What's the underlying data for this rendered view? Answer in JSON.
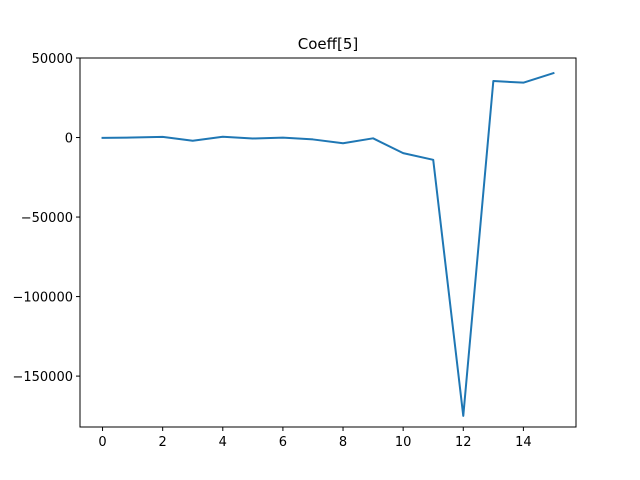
{
  "chart_data": {
    "type": "line",
    "title": "Coeff[5]",
    "xlabel": "",
    "ylabel": "",
    "xlim": [
      -0.75,
      15.75
    ],
    "ylim": [
      -182000,
      50000
    ],
    "xticks": [
      0,
      2,
      4,
      6,
      8,
      10,
      12,
      14
    ],
    "yticks": [
      50000,
      0,
      -50000,
      -100000,
      -150000
    ],
    "xtick_labels": [
      "0",
      "2",
      "4",
      "6",
      "8",
      "10",
      "12",
      "14"
    ],
    "ytick_labels": [
      "50000",
      "0",
      "−50000",
      "−100000",
      "−150000"
    ],
    "grid": false,
    "legend": "none",
    "series": [
      {
        "color": "#1f77b4",
        "x": [
          0,
          1,
          2,
          3,
          4,
          5,
          6,
          7,
          8,
          9,
          10,
          11,
          12,
          13,
          14,
          15
        ],
        "y": [
          -200,
          0,
          400,
          -2000,
          500,
          -600,
          -100,
          -1200,
          -3600,
          -500,
          -9800,
          -14000,
          -175000,
          35500,
          34500,
          40500
        ]
      }
    ]
  }
}
